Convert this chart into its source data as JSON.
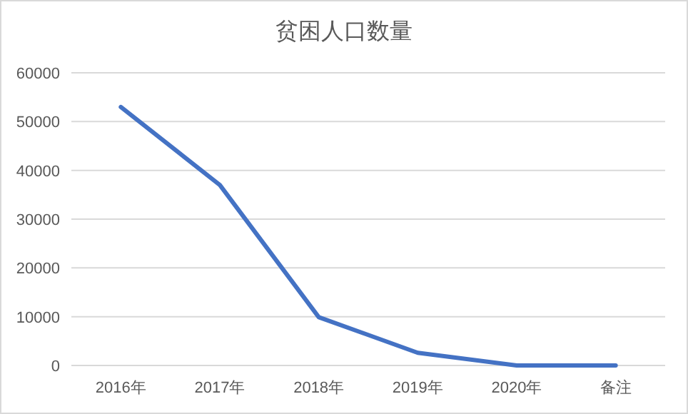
{
  "chart_data": {
    "type": "line",
    "title": "贫困人口数量",
    "categories": [
      "2016年",
      "2017年",
      "2018年",
      "2019年",
      "2020年",
      "备注"
    ],
    "series": [
      {
        "color": "#4472c4",
        "values": [
          53000,
          37000,
          9900,
          2600,
          0,
          0
        ]
      }
    ],
    "ylim": [
      0,
      60000
    ],
    "yticks": [
      0,
      10000,
      20000,
      30000,
      40000,
      50000,
      60000
    ],
    "grid": "y",
    "marker": "none",
    "line_style": "solid"
  }
}
